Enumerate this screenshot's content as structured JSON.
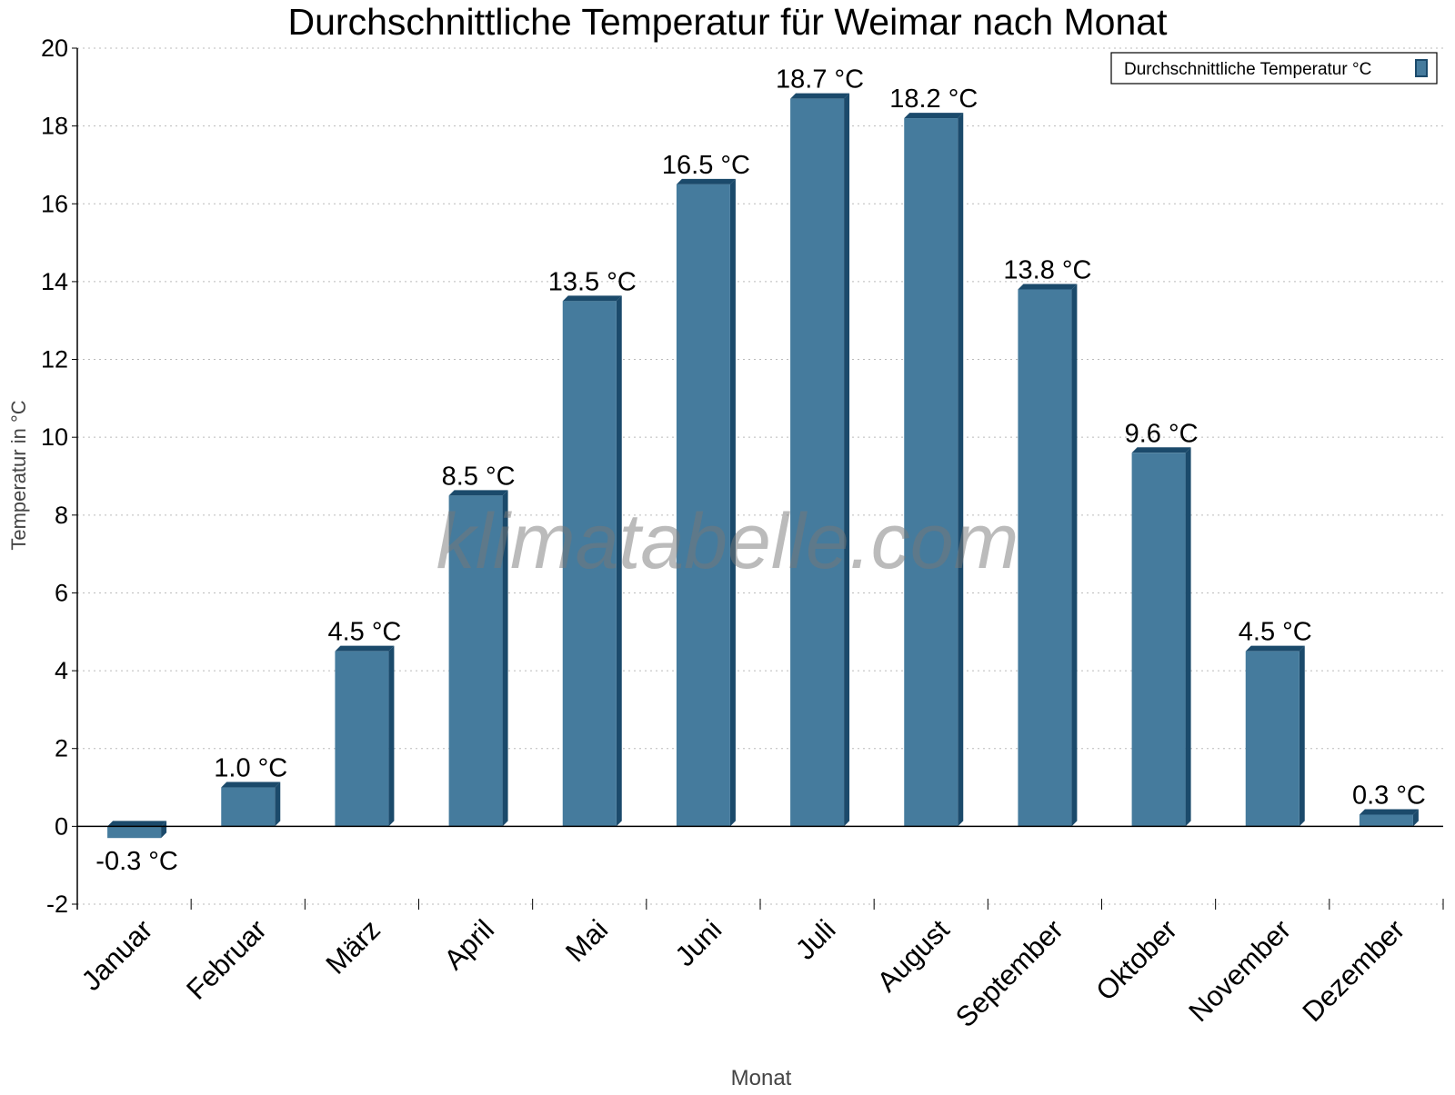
{
  "chart_data": {
    "type": "bar",
    "title": "Durchschnittliche Temperatur für Weimar nach Monat",
    "xlabel": "Monat",
    "ylabel": "Temperatur in °C",
    "categories": [
      "Januar",
      "Februar",
      "März",
      "April",
      "Mai",
      "Juni",
      "Juli",
      "August",
      "September",
      "Oktober",
      "November",
      "Dezember"
    ],
    "series": [
      {
        "name": "Durchschnittliche Temperatur °C",
        "values": [
          -0.3,
          1.0,
          4.5,
          8.5,
          13.5,
          16.5,
          18.7,
          18.2,
          13.8,
          9.6,
          4.5,
          0.3
        ],
        "color": "#457b9d",
        "side_color": "#1b4a6b"
      }
    ],
    "data_labels": [
      "-0.3 °C",
      "1.0 °C",
      "4.5 °C",
      "8.5 °C",
      "13.5 °C",
      "16.5 °C",
      "18.7 °C",
      "18.2 °C",
      "13.8 °C",
      "9.6 °C",
      "4.5 °C",
      "0.3 °C"
    ],
    "ylim": [
      -2,
      20
    ],
    "yticks": [
      -2,
      0,
      2,
      4,
      6,
      8,
      10,
      12,
      14,
      16,
      18,
      20
    ],
    "grid": true,
    "legend_position": "top-right",
    "watermark": "klimatabelle.com"
  }
}
